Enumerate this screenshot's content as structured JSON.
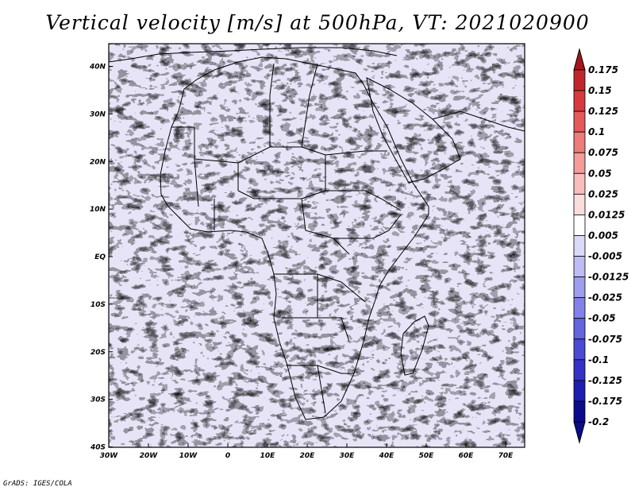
{
  "title": "Vertical velocity [m/s] at 500hPa, VT: 2021020900",
  "credit": "GrADS: IGES/COLA",
  "map": {
    "lon_labels": [
      "30W",
      "20W",
      "10W",
      "0",
      "10E",
      "20E",
      "30E",
      "40E",
      "50E",
      "60E",
      "70E"
    ],
    "lat_labels": [
      "40N",
      "30N",
      "20N",
      "10N",
      "EQ",
      "10S",
      "20S",
      "30S",
      "40S"
    ]
  },
  "colorbar": {
    "labels": [
      "0.175",
      "0.15",
      "0.125",
      "0.1",
      "0.075",
      "0.05",
      "0.025",
      "0.0125",
      "0.005",
      "-0.005",
      "-0.0125",
      "-0.025",
      "-0.05",
      "-0.075",
      "-0.1",
      "-0.125",
      "-0.175",
      "-0.2"
    ],
    "colors": [
      "#a3161b",
      "#c0272d",
      "#d63a3e",
      "#e4595a",
      "#ee7c7a",
      "#f39c9a",
      "#f7bdbc",
      "#fbdcdc",
      "#ffffff",
      "#dadaf8",
      "#bdbdf3",
      "#9e9eec",
      "#8282e6",
      "#6565de",
      "#4a4ad4",
      "#3333c6",
      "#1e1eb0",
      "#0b0b8c"
    ]
  },
  "colors": {
    "land_border": "#000000",
    "neutral": "#ffffff",
    "up": "#d63a3e",
    "down": "#4a4ad4"
  }
}
